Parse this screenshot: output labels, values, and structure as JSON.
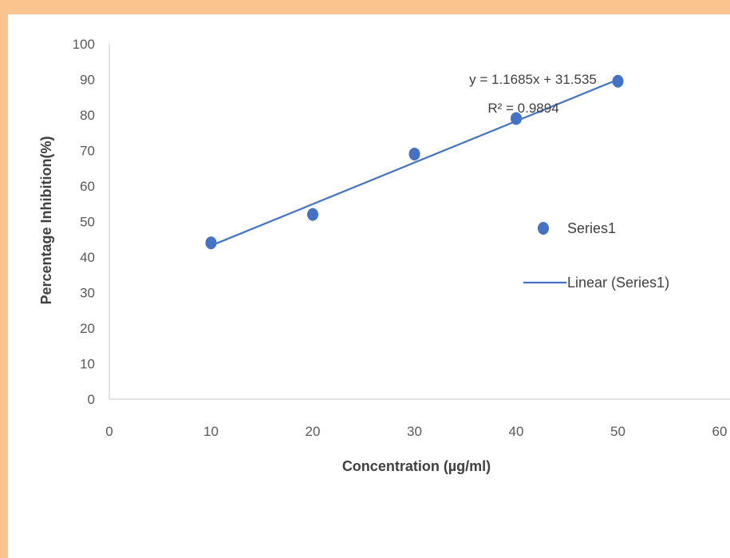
{
  "chart_data": {
    "type": "scatter",
    "xlabel": "Concentration (µg/ml)",
    "ylabel": "Percentage Inhibition(%)",
    "xlim": [
      0,
      60
    ],
    "ylim": [
      0,
      100
    ],
    "x_ticks": [
      "0",
      "10",
      "20",
      "30",
      "40",
      "50",
      "60"
    ],
    "y_ticks": [
      "0",
      "10",
      "20",
      "30",
      "40",
      "50",
      "60",
      "70",
      "80",
      "90",
      "100"
    ],
    "series": [
      {
        "name": "Series1",
        "x": [
          10,
          20,
          30,
          40,
          50
        ],
        "y": [
          44,
          52,
          69,
          79,
          89.5
        ],
        "color": "#4472c4"
      }
    ],
    "trendline": {
      "name": "Linear (Series1)",
      "slope": 1.1685,
      "intercept": 31.535,
      "x_range": [
        10,
        50
      ],
      "equation": "y = 1.1685x + 31.535",
      "r_squared": "R² = 0.9894",
      "color": "#4472c4"
    },
    "legend": {
      "placement": "right",
      "entries": [
        "Series1",
        "Linear (Series1)"
      ]
    },
    "grid": false
  }
}
